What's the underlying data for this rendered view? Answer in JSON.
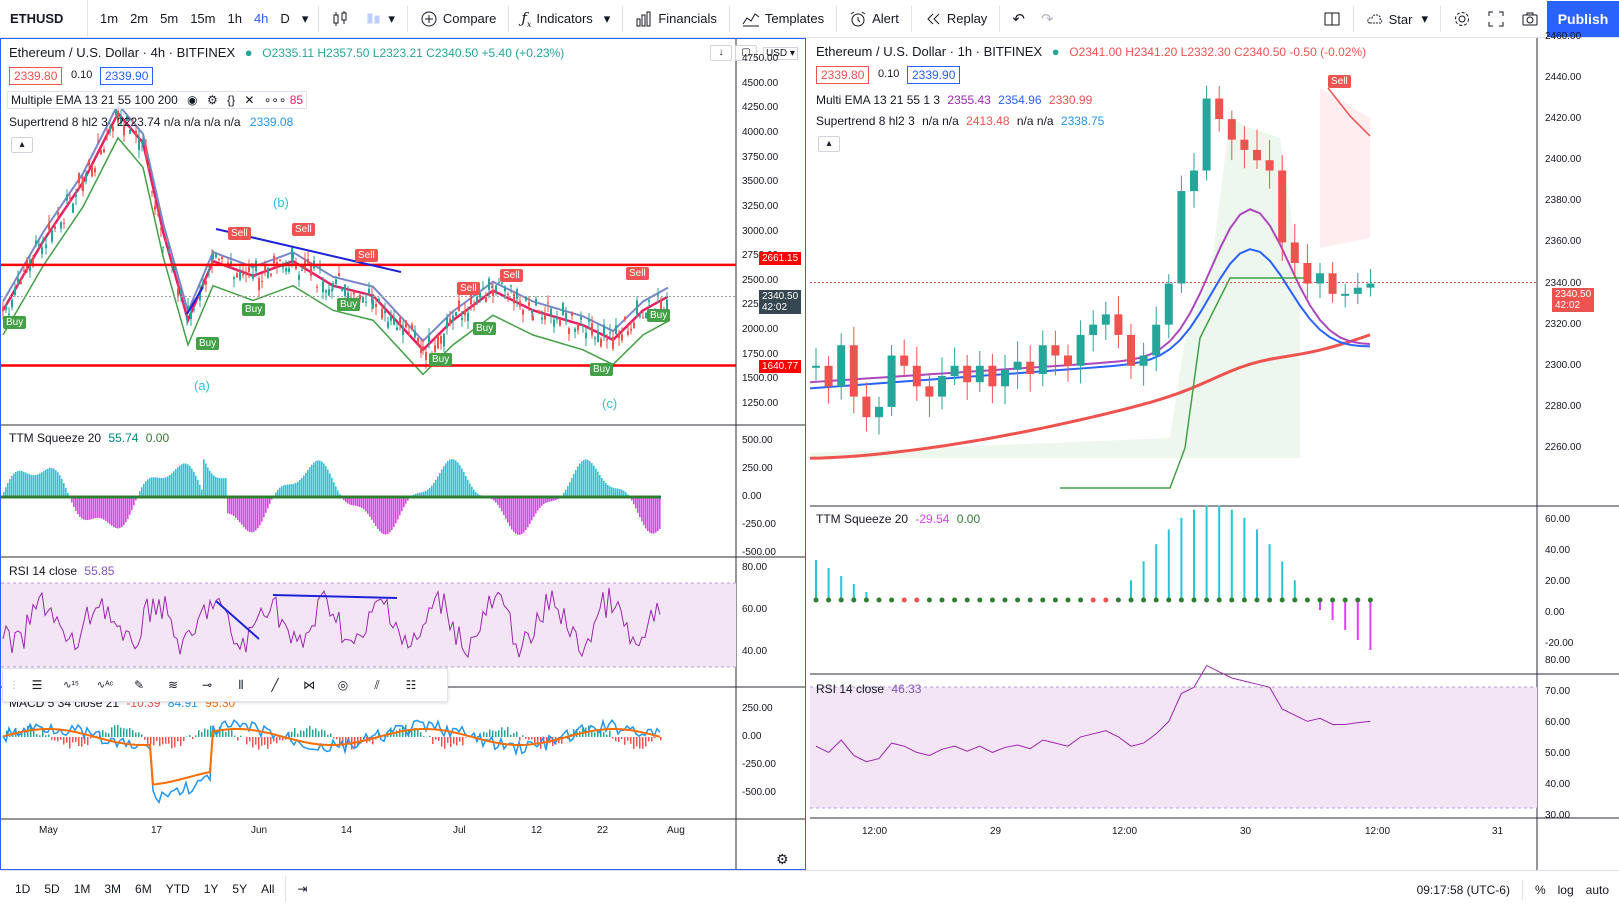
{
  "toolbar": {
    "symbol": "ETHUSD",
    "intervals": [
      "1m",
      "2m",
      "5m",
      "15m",
      "1h",
      "4h",
      "D"
    ],
    "active_interval": "4h",
    "compare_label": "Compare",
    "indicators_label": "Indicators",
    "financials_label": "Financials",
    "templates_label": "Templates",
    "alert_label": "Alert",
    "replay_label": "Replay",
    "star_label": "Star",
    "publish_label": "Publish"
  },
  "left_chart": {
    "title": "Ethereum / U.S. Dollar · 4h · BITFINEX",
    "ohlc": "O2335.11 H2357.50 L2323.21 C2340.50 +5.40 (+0.23%)",
    "bid": "2339.80",
    "spread": "0.10",
    "ask": "2339.90",
    "ema_legend": "Multiple EMA 13 21 55 100 200",
    "ema_trail": "85",
    "supertrend_legend": "Supertrend 8 hl2 3",
    "supertrend_vals": "2223.74  n/a  n/a  n/a  n/a",
    "supertrend_last": "2339.08",
    "currency": "USD",
    "price_axis": [
      "4750.00",
      "4500.00",
      "4250.00",
      "4000.00",
      "3750.00",
      "3500.00",
      "3250.00",
      "3000.00",
      "2750.00",
      "2500.00",
      "2250.00",
      "2000.00",
      "1750.00",
      "1500.00",
      "1250.00"
    ],
    "level_high": "2661.15",
    "level_low": "1640.77",
    "last_price": "2340.50",
    "countdown": "42:02",
    "dates": [
      "May",
      "17",
      "Jun",
      "14",
      "Jul",
      "12",
      "22",
      "Aug"
    ],
    "waves": {
      "a": "(a)",
      "b": "(b)",
      "c": "(c)"
    },
    "signals": {
      "buy": "Buy",
      "sell": "Sell"
    },
    "ttm": {
      "label": "TTM Squeeze 20",
      "v1": "55.74",
      "v2": "0.00",
      "axis": [
        "500.00",
        "250.00",
        "0.00",
        "-250.00",
        "-500.00"
      ]
    },
    "rsi": {
      "label": "RSI 14 close",
      "value": "55.85",
      "axis": [
        "80.00",
        "60.00",
        "40.00"
      ]
    },
    "macd": {
      "label": "MACD 5 34 close 21",
      "v1": "-10.39",
      "v2": "84.91",
      "v3": "95.30",
      "axis": [
        "250.00",
        "0.00",
        "-250.00",
        "-500.00"
      ]
    }
  },
  "right_chart": {
    "title": "Ethereum / U.S. Dollar · 1h · BITFINEX",
    "ohlc": "O2341.00 H2341.20 L2332.30 C2340.50 -0.50 (-0.02%)",
    "bid": "2339.80",
    "spread": "0.10",
    "ask": "2339.90",
    "ema_legend": "Multi EMA 13 21 55 1 3",
    "ema_vals": [
      "2355.43",
      "2354.96",
      "2330.99"
    ],
    "supertrend_legend": "Supertrend 8 hl2 3",
    "supertrend_vals": [
      "n/a n/a",
      "2413.48",
      "n/a n/a",
      "2338.75"
    ],
    "price_axis": [
      "2460.00",
      "2440.00",
      "2420.00",
      "2400.00",
      "2380.00",
      "2360.00",
      "2340.00",
      "2320.00",
      "2300.00",
      "2280.00",
      "2260.00"
    ],
    "last_price": "2340.50",
    "countdown": "42:02",
    "dates": [
      "12:00",
      "29",
      "12:00",
      "30",
      "12:00",
      "31"
    ],
    "signals": {
      "sell": "Sell"
    },
    "ttm": {
      "label": "TTM Squeeze 20",
      "v1": "-29.54",
      "v2": "0.00",
      "axis": [
        "60.00",
        "40.00",
        "20.00",
        "0.00",
        "-20.00"
      ]
    },
    "rsi": {
      "label": "RSI 14 close",
      "value": "46.33",
      "axis": [
        "80.00",
        "70.00",
        "60.00",
        "50.00",
        "40.00",
        "30.00"
      ]
    }
  },
  "bottombar": {
    "ranges": [
      "1D",
      "5D",
      "1M",
      "3M",
      "6M",
      "YTD",
      "1Y",
      "5Y",
      "All"
    ],
    "time": "09:17:58 (UTC-6)",
    "pct": "%",
    "log": "log",
    "auto": "auto"
  },
  "colors": {
    "accent": "#2962ff",
    "up": "#26a69a",
    "down": "#ef5350",
    "level": "#ff0000"
  }
}
